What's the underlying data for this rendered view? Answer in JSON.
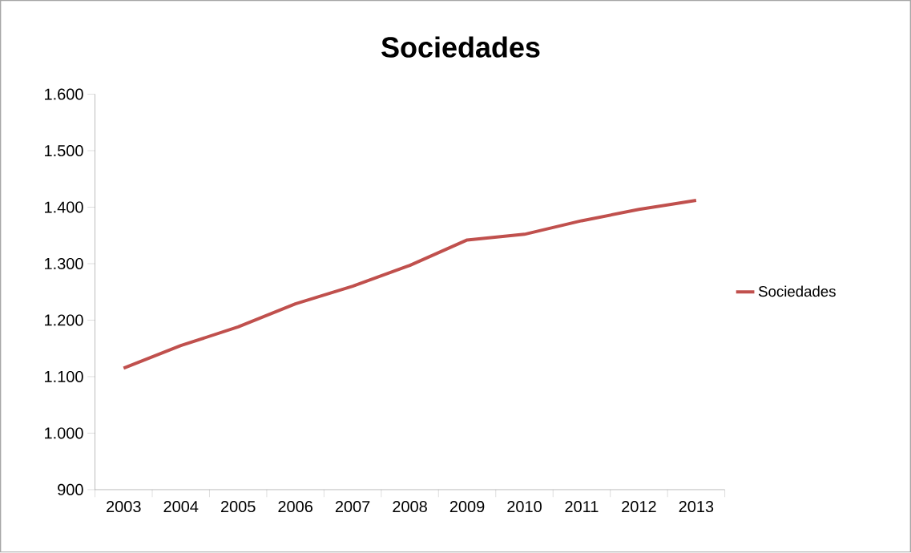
{
  "chart_data": {
    "type": "line",
    "title": "Sociedades",
    "categories": [
      "2003",
      "2004",
      "2005",
      "2006",
      "2007",
      "2008",
      "2009",
      "2010",
      "2011",
      "2012",
      "2013"
    ],
    "series": [
      {
        "name": "Sociedades",
        "color": "#c0504d",
        "values": [
          1115,
          1155,
          1188,
          1229,
          1260,
          1297,
          1342,
          1352,
          1376,
          1396,
          1412
        ]
      }
    ],
    "ylim": [
      900,
      1600
    ],
    "yticks": [
      {
        "value": 900,
        "label": "900"
      },
      {
        "value": 1000,
        "label": "1.000"
      },
      {
        "value": 1100,
        "label": "1.100"
      },
      {
        "value": 1200,
        "label": "1.200"
      },
      {
        "value": 1300,
        "label": "1.300"
      },
      {
        "value": 1400,
        "label": "1.400"
      },
      {
        "value": 1500,
        "label": "1.500"
      },
      {
        "value": 1600,
        "label": "1.600"
      }
    ],
    "grid": false,
    "legend": "right",
    "line_style": "solid"
  }
}
